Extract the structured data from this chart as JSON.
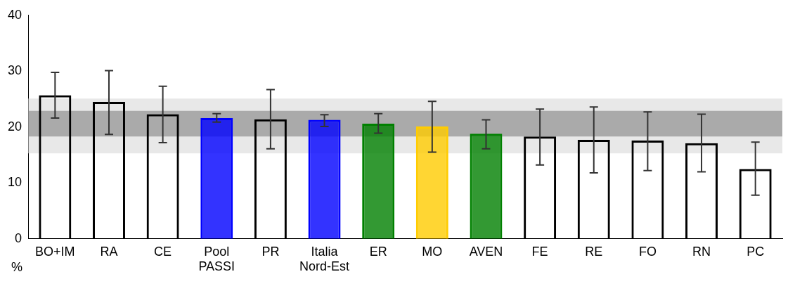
{
  "chart_data": {
    "type": "bar",
    "ylabel": "%",
    "categories": [
      "BO+IM",
      "RA",
      "CE",
      "Pool PASSI",
      "PR",
      "Italia Nord-Est",
      "ER",
      "MO",
      "AVEN",
      "FE",
      "RE",
      "FO",
      "RN",
      "PC"
    ],
    "values": [
      25.7,
      24.5,
      22.3,
      21.6,
      21.4,
      21.3,
      20.6,
      20.1,
      18.8,
      18.3,
      17.7,
      17.6,
      17.1,
      12.5
    ],
    "colors": [
      "#000000",
      "#000000",
      "#000000",
      "#0000ff",
      "#000000",
      "#0000ff",
      "#008000",
      "#ffcc00",
      "#008000",
      "#000000",
      "#000000",
      "#000000",
      "#000000",
      "#000000"
    ],
    "errors": [
      [
        21.6,
        29.8
      ],
      [
        18.7,
        30.1
      ],
      [
        17.2,
        27.3
      ],
      [
        20.9,
        22.4
      ],
      [
        16.1,
        26.7
      ],
      [
        20.1,
        22.2
      ],
      [
        18.9,
        22.4
      ],
      [
        15.5,
        24.6
      ],
      [
        16.1,
        21.3
      ],
      [
        13.2,
        23.2
      ],
      [
        11.8,
        23.6
      ],
      [
        12.2,
        22.7
      ],
      [
        12.0,
        22.3
      ],
      [
        7.8,
        17.3
      ]
    ],
    "bands": [
      {
        "axis": "y",
        "from": 15.3,
        "to": 25.1,
        "color": "#d9d9d9"
      },
      {
        "axis": "y",
        "from": 18.3,
        "to": 22.9,
        "color": "#808080"
      }
    ],
    "ylim": [
      0,
      40
    ],
    "yticks": [
      0,
      10,
      20,
      30,
      40
    ],
    "grid": false,
    "legend": false
  }
}
